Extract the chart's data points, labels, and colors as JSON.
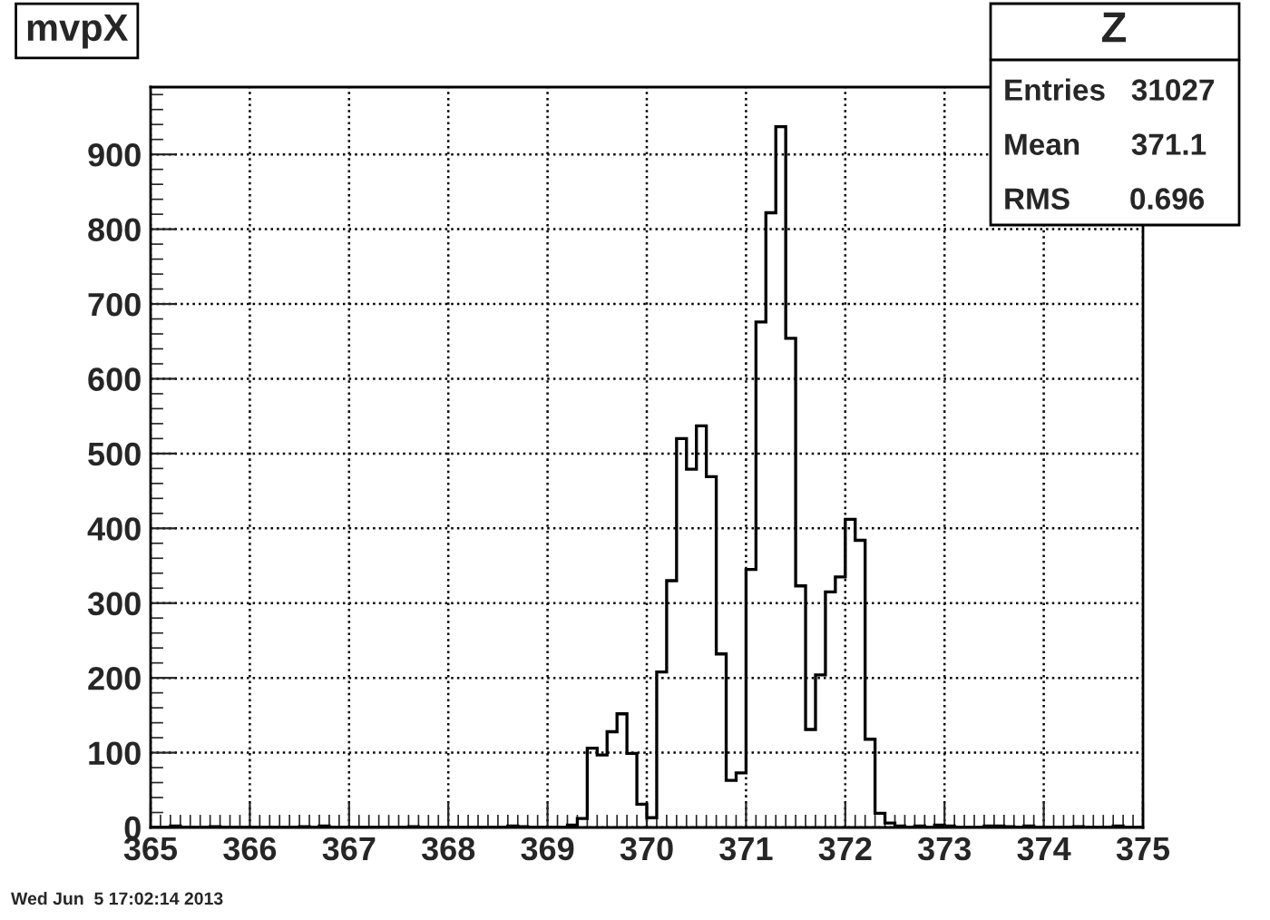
{
  "chart_data": {
    "type": "histogram",
    "title": "mvpX",
    "bins": [
      365.0,
      365.1,
      365.2,
      365.3,
      365.4,
      365.5,
      365.6,
      365.7,
      365.8,
      365.9,
      366.0,
      366.1,
      366.2,
      366.3,
      366.4,
      366.5,
      366.6,
      366.7,
      366.8,
      366.9,
      367.0,
      367.1,
      367.2,
      367.3,
      367.4,
      367.5,
      367.6,
      367.7,
      367.8,
      367.9,
      368.0,
      368.1,
      368.2,
      368.3,
      368.4,
      368.5,
      368.6,
      368.7,
      368.8,
      368.9,
      369.0,
      369.1,
      369.2,
      369.3,
      369.4,
      369.5,
      369.6,
      369.7,
      369.8,
      369.9,
      370.0,
      370.1,
      370.2,
      370.3,
      370.4,
      370.5,
      370.6,
      370.7,
      370.8,
      370.9,
      371.0,
      371.1,
      371.2,
      371.3,
      371.4,
      371.5,
      371.6,
      371.7,
      371.8,
      371.9,
      372.0,
      372.1,
      372.2,
      372.3,
      372.4,
      372.5,
      372.6,
      372.7,
      372.8,
      372.9,
      373.0,
      373.1,
      373.2,
      373.3,
      373.4,
      373.5,
      373.6,
      373.7,
      373.8,
      373.9,
      374.0,
      374.1,
      374.2,
      374.3,
      374.4,
      374.5,
      374.6,
      374.7,
      374.8,
      374.9,
      375.0
    ],
    "values": [
      0,
      0,
      2,
      0,
      0,
      0,
      1,
      0,
      0,
      0,
      0,
      0,
      0,
      0,
      0,
      1,
      0,
      2,
      0,
      0,
      0,
      0,
      0,
      0,
      0,
      0,
      1,
      0,
      0,
      0,
      0,
      0,
      0,
      0,
      0,
      0,
      2,
      1,
      0,
      0,
      0,
      0,
      3,
      12,
      106,
      97,
      128,
      152,
      99,
      31,
      13,
      208,
      330,
      520,
      479,
      537,
      469,
      232,
      63,
      73,
      345,
      676,
      822,
      937,
      654,
      323,
      131,
      204,
      315,
      335,
      412,
      384,
      118,
      19,
      6,
      2,
      0,
      2,
      0,
      3,
      2,
      0,
      0,
      0,
      2,
      2,
      1,
      0,
      2,
      0,
      0,
      0,
      0,
      1,
      0,
      0,
      0,
      2,
      0,
      0
    ],
    "color": "#000000",
    "xlim": [
      365,
      375
    ],
    "xticks": [
      365,
      366,
      367,
      368,
      369,
      370,
      371,
      372,
      373,
      374,
      375
    ],
    "ylim": [
      0,
      990
    ],
    "yticks": [
      0,
      100,
      200,
      300,
      400,
      500,
      600,
      700,
      800,
      900
    ],
    "grid": true,
    "annotations": [
      "Z",
      "Entries   31027",
      "Mean      371.1",
      "RMS       0.696",
      "Wed Jun  5 17:02:14 2013"
    ]
  }
}
